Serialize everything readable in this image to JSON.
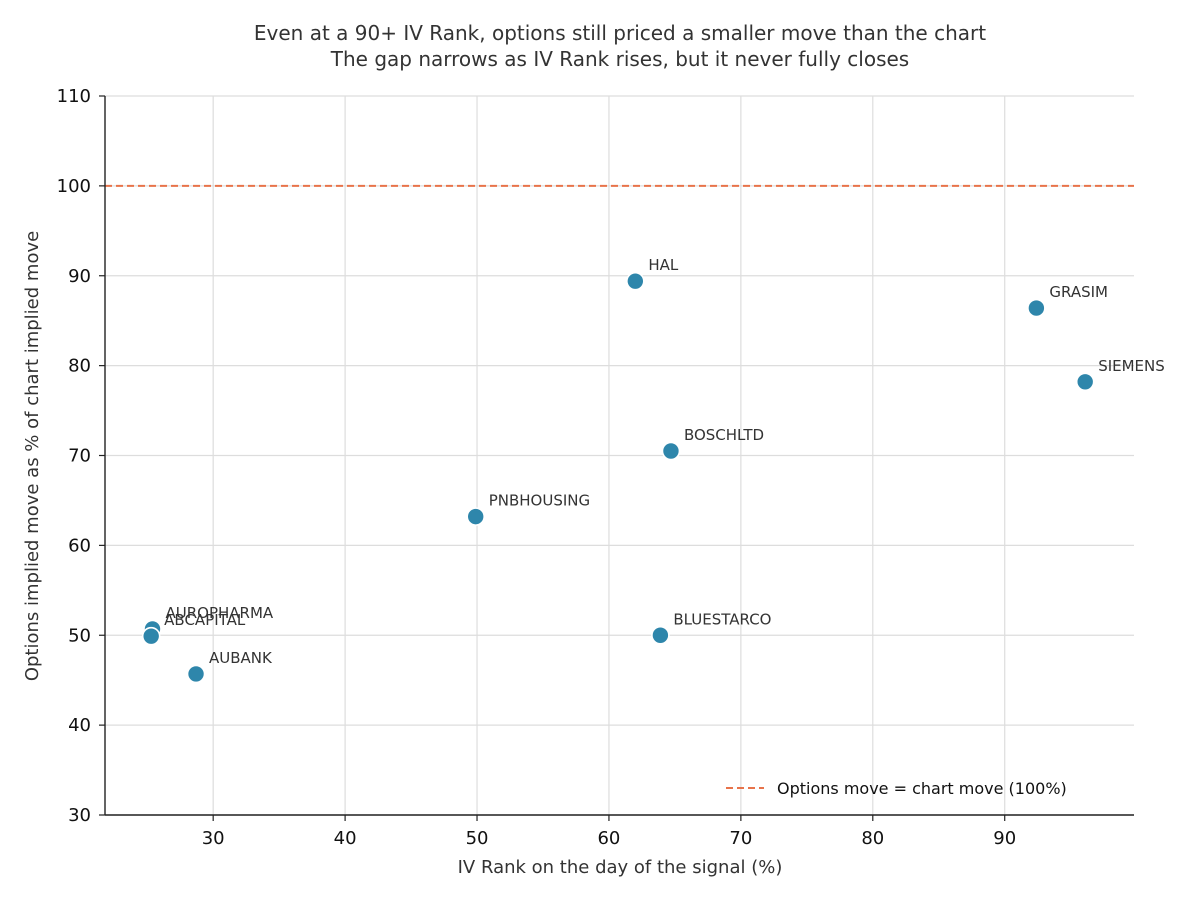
{
  "chart_data": {
    "type": "scatter",
    "title": "Even at a 90+ IV Rank, options still priced a smaller move than the chart",
    "subtitle": "The gap narrows as IV Rank rises, but it never fully closes",
    "xlabel": "IV Rank on the day of the signal (%)",
    "ylabel": "Options implied move as % of chart implied move",
    "xlim": [
      21.8,
      99.8
    ],
    "ylim": [
      30,
      110
    ],
    "x_ticks": [
      30,
      40,
      50,
      60,
      70,
      80,
      90
    ],
    "y_ticks": [
      30,
      40,
      50,
      60,
      70,
      80,
      90,
      100,
      110
    ],
    "grid": true,
    "legend_position": "bottom-right",
    "colors": {
      "points": "#2e86ab",
      "reference": "#e8734a",
      "grid": "#dddddd"
    },
    "reference_line": {
      "y": 100,
      "style": "dashed",
      "label": "Options move = chart move (100%)"
    },
    "points": [
      {
        "label": "HAL",
        "x": 62.0,
        "y": 89.4
      },
      {
        "label": "GRASIM",
        "x": 92.4,
        "y": 86.4
      },
      {
        "label": "SIEMENS",
        "x": 96.1,
        "y": 78.2
      },
      {
        "label": "BOSCHLTD",
        "x": 64.7,
        "y": 70.5
      },
      {
        "label": "PNBHOUSING",
        "x": 49.9,
        "y": 63.2
      },
      {
        "label": "AUROPHARMA",
        "x": 25.4,
        "y": 50.7
      },
      {
        "label": "ABCAPITAL",
        "x": 25.3,
        "y": 49.9
      },
      {
        "label": "BLUESTARCO",
        "x": 63.9,
        "y": 50.0
      },
      {
        "label": "AUBANK",
        "x": 28.7,
        "y": 45.7
      }
    ]
  }
}
